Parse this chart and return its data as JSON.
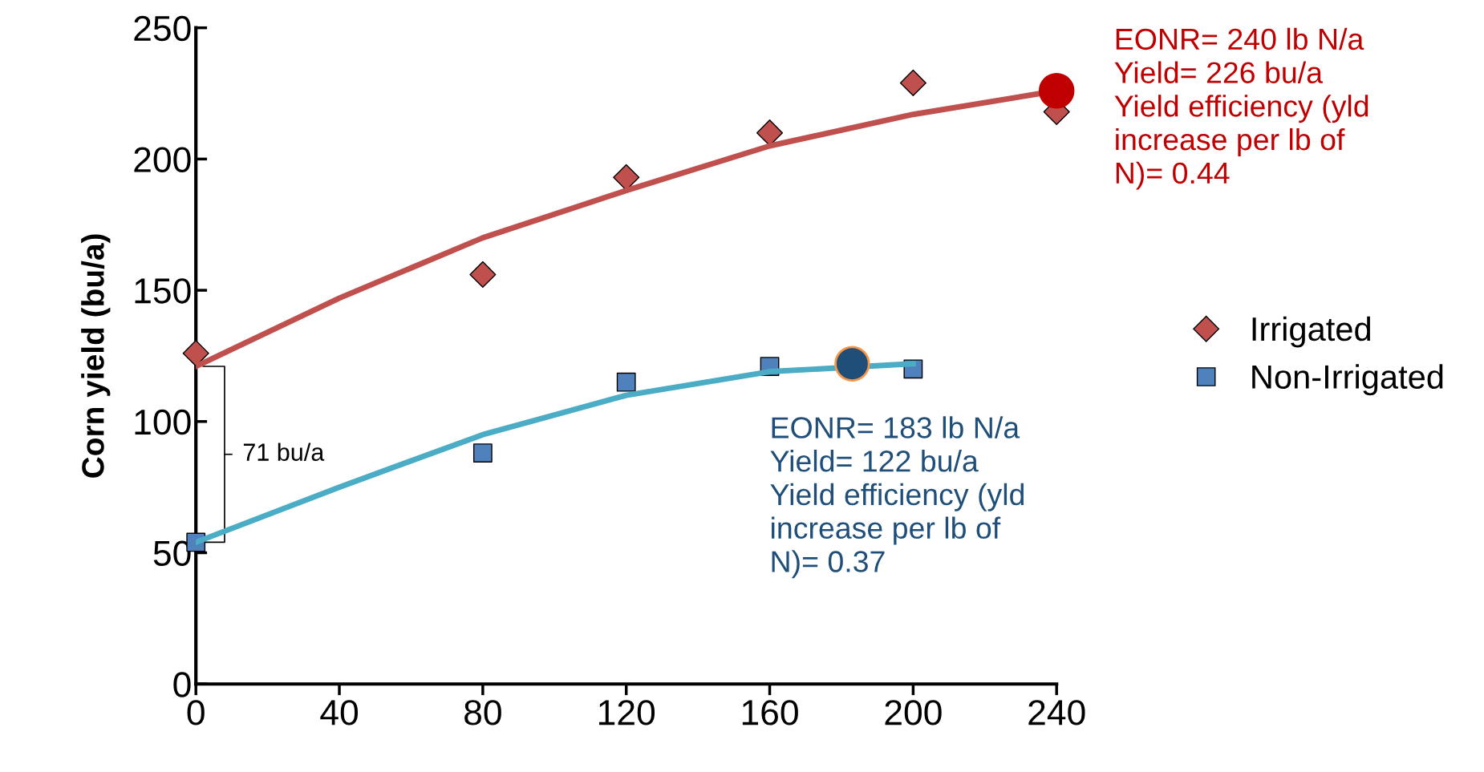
{
  "chart_data": {
    "type": "scatter",
    "ylabel": "Corn yield (bu/a)",
    "xlim": [
      0,
      240
    ],
    "xticks": [
      0,
      40,
      80,
      120,
      160,
      200,
      240
    ],
    "ylim": [
      0,
      250
    ],
    "yticks": [
      0,
      50,
      100,
      150,
      200,
      250
    ],
    "grid": false,
    "legend": "right",
    "series": [
      {
        "name": "Irrigated",
        "marker": "diamond",
        "color": "#c0504d",
        "x": [
          0,
          80,
          120,
          160,
          200,
          240
        ],
        "values": [
          126,
          156,
          193,
          210,
          229,
          218
        ]
      },
      {
        "name": "Non-Irrigated",
        "marker": "square",
        "color": "#4f81bd",
        "x": [
          0,
          80,
          120,
          160,
          200
        ],
        "values": [
          54,
          88,
          115,
          121,
          120
        ]
      },
      {
        "type": "line",
        "color": "#c0504d",
        "x": [
          0,
          40,
          80,
          120,
          160,
          200,
          240
        ],
        "values": [
          121,
          147,
          170,
          188,
          205,
          217,
          226
        ]
      },
      {
        "type": "line",
        "color": "#4bacc6",
        "x": [
          0,
          40,
          80,
          120,
          160,
          200
        ],
        "values": [
          54,
          75,
          95,
          110,
          119,
          122
        ]
      },
      {
        "marker": "circle",
        "color": "#c00000",
        "x": [
          240
        ],
        "values": [
          226
        ]
      },
      {
        "marker": "circle",
        "color": "#1f4e79",
        "x": [
          183
        ],
        "values": [
          122
        ]
      }
    ],
    "annotations": [
      {
        "text": "EONR= 240 lb N/a\nYield= 226 bu/a\nYield efficiency (yld\nincrease per lb of\nN)= 0.44",
        "x": 240,
        "y": 226
      },
      {
        "text": "EONR= 183 lb N/a\nYield= 122 bu/a\nYield efficiency (yld\nincrease per lb of\nN)= 0.37",
        "x": 183,
        "y": 122
      },
      "71 bu/a"
    ]
  }
}
